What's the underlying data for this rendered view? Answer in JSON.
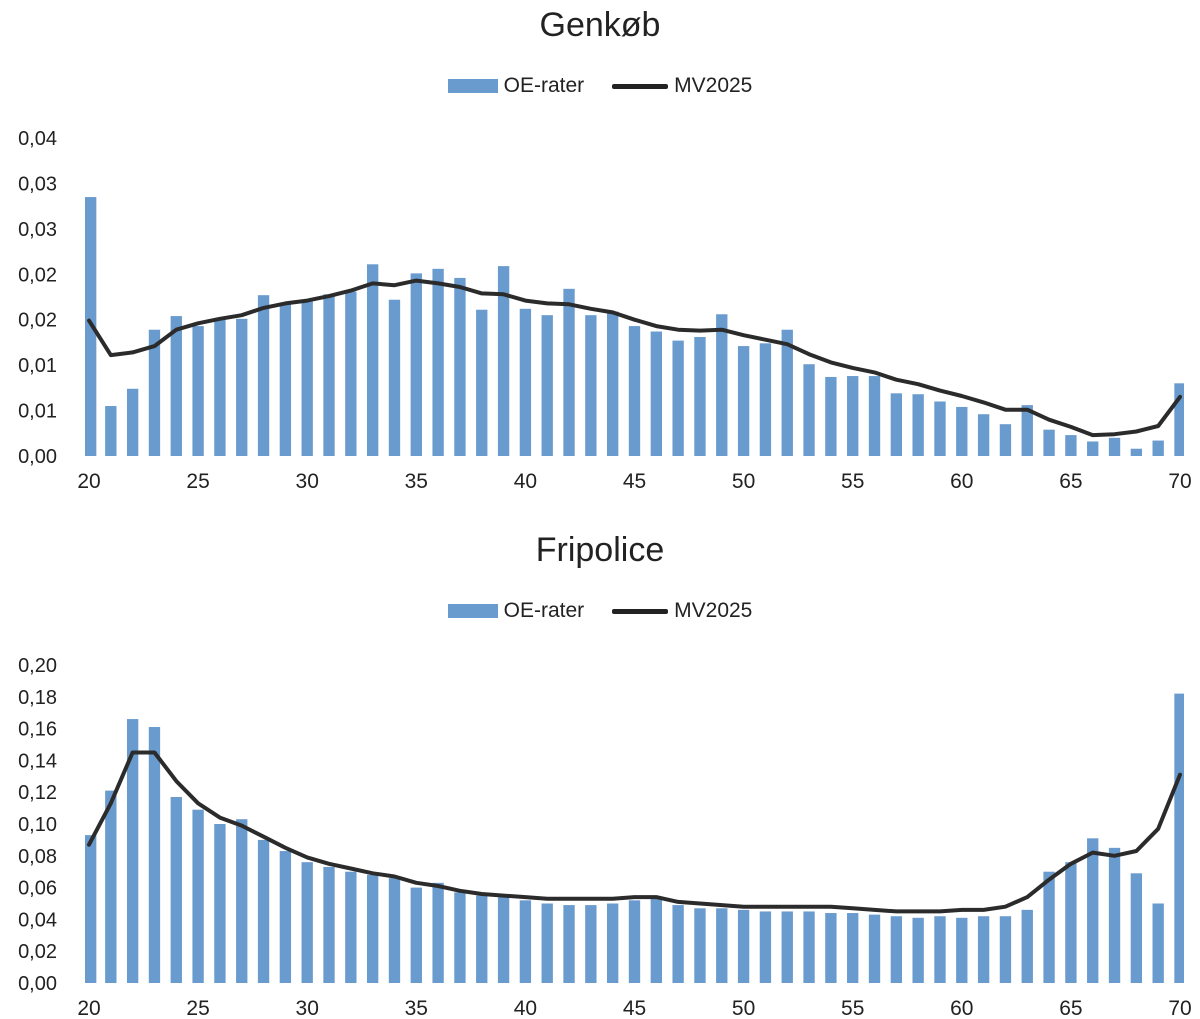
{
  "chart_data": [
    {
      "type": "bar",
      "title": "Genkøb",
      "legend": {
        "bars": "OE-rater",
        "line": "MV2025",
        "placement": "top-center"
      },
      "x": [
        20,
        21,
        22,
        23,
        24,
        25,
        26,
        27,
        28,
        29,
        30,
        31,
        32,
        33,
        34,
        35,
        36,
        37,
        38,
        39,
        40,
        41,
        42,
        43,
        44,
        45,
        46,
        47,
        48,
        49,
        50,
        51,
        52,
        53,
        54,
        55,
        56,
        57,
        58,
        59,
        60,
        61,
        62,
        63,
        64,
        65,
        66,
        67,
        68,
        69,
        70
      ],
      "series": [
        {
          "name": "OE-rater",
          "kind": "bar",
          "values": [
            0.0285,
            0.0055,
            0.0074,
            0.0139,
            0.0154,
            0.0143,
            0.0151,
            0.0151,
            0.0177,
            0.0168,
            0.017,
            0.0178,
            0.0181,
            0.0211,
            0.0172,
            0.0201,
            0.0206,
            0.0196,
            0.0161,
            0.0209,
            0.0162,
            0.0155,
            0.0184,
            0.0155,
            0.0159,
            0.0143,
            0.0137,
            0.0127,
            0.0131,
            0.0156,
            0.0121,
            0.0124,
            0.0139,
            0.0101,
            0.0087,
            0.0088,
            0.0088,
            0.0069,
            0.0068,
            0.006,
            0.0054,
            0.0046,
            0.0035,
            0.0056,
            0.0029,
            0.0023,
            0.0016,
            0.002,
            0.0008,
            0.0017,
            0.008
          ]
        },
        {
          "name": "MV2025",
          "kind": "line",
          "values": [
            0.0149,
            0.0111,
            0.0114,
            0.0121,
            0.0139,
            0.0146,
            0.0151,
            0.0155,
            0.0163,
            0.0168,
            0.0171,
            0.0176,
            0.0182,
            0.019,
            0.0188,
            0.0193,
            0.019,
            0.0186,
            0.0179,
            0.0178,
            0.0171,
            0.0168,
            0.0167,
            0.0162,
            0.0158,
            0.015,
            0.0143,
            0.0139,
            0.0138,
            0.0139,
            0.0133,
            0.0128,
            0.0123,
            0.0112,
            0.0103,
            0.0097,
            0.0092,
            0.0084,
            0.0079,
            0.0072,
            0.0066,
            0.0059,
            0.0051,
            0.0051,
            0.004,
            0.0032,
            0.0023,
            0.0024,
            0.0027,
            0.0033,
            0.0065
          ]
        }
      ],
      "ytick_labels": [
        "0,00",
        "0,01",
        "0,01",
        "0,02",
        "0,02",
        "0,03",
        "0,03",
        "0,04"
      ],
      "yticks": [
        0,
        0.005,
        0.01,
        0.015,
        0.02,
        0.025,
        0.03,
        0.035
      ],
      "ylim": [
        0,
        0.035
      ],
      "xtick_labels": [
        "20",
        "25",
        "30",
        "35",
        "40",
        "45",
        "50",
        "55",
        "60",
        "65",
        "70"
      ],
      "grid": false,
      "colors": {
        "bar": "#6a9bcf",
        "line": "#2b2b2b"
      }
    },
    {
      "type": "bar",
      "title": "Fripolice",
      "legend": {
        "bars": "OE-rater",
        "line": "MV2025",
        "placement": "top-center"
      },
      "x": [
        20,
        21,
        22,
        23,
        24,
        25,
        26,
        27,
        28,
        29,
        30,
        31,
        32,
        33,
        34,
        35,
        36,
        37,
        38,
        39,
        40,
        41,
        42,
        43,
        44,
        45,
        46,
        47,
        48,
        49,
        50,
        51,
        52,
        53,
        54,
        55,
        56,
        57,
        58,
        59,
        60,
        61,
        62,
        63,
        64,
        65,
        66,
        67,
        68,
        69,
        70
      ],
      "series": [
        {
          "name": "OE-rater",
          "kind": "bar",
          "values": [
            0.093,
            0.121,
            0.166,
            0.161,
            0.117,
            0.109,
            0.1,
            0.103,
            0.09,
            0.083,
            0.076,
            0.073,
            0.07,
            0.068,
            0.066,
            0.06,
            0.063,
            0.057,
            0.055,
            0.054,
            0.052,
            0.05,
            0.049,
            0.049,
            0.05,
            0.052,
            0.054,
            0.049,
            0.047,
            0.047,
            0.046,
            0.045,
            0.045,
            0.045,
            0.044,
            0.044,
            0.043,
            0.042,
            0.041,
            0.042,
            0.041,
            0.042,
            0.042,
            0.046,
            0.07,
            0.076,
            0.091,
            0.085,
            0.069,
            0.05,
            0.182
          ]
        },
        {
          "name": "MV2025",
          "kind": "line",
          "values": [
            0.087,
            0.113,
            0.145,
            0.145,
            0.127,
            0.113,
            0.104,
            0.099,
            0.092,
            0.085,
            0.079,
            0.075,
            0.072,
            0.069,
            0.067,
            0.063,
            0.061,
            0.058,
            0.056,
            0.055,
            0.054,
            0.053,
            0.053,
            0.053,
            0.053,
            0.054,
            0.054,
            0.051,
            0.05,
            0.049,
            0.048,
            0.048,
            0.048,
            0.048,
            0.048,
            0.047,
            0.046,
            0.045,
            0.045,
            0.045,
            0.046,
            0.046,
            0.048,
            0.054,
            0.065,
            0.075,
            0.082,
            0.08,
            0.083,
            0.097,
            0.131
          ]
        }
      ],
      "ytick_labels": [
        "0,00",
        "0,02",
        "0,04",
        "0,06",
        "0,08",
        "0,10",
        "0,12",
        "0,14",
        "0,16",
        "0,18",
        "0,20"
      ],
      "yticks": [
        0,
        0.02,
        0.04,
        0.06,
        0.08,
        0.1,
        0.12,
        0.14,
        0.16,
        0.18,
        0.2
      ],
      "ylim": [
        0,
        0.2
      ],
      "xtick_labels": [
        "20",
        "25",
        "30",
        "35",
        "40",
        "45",
        "50",
        "55",
        "60",
        "65",
        "70"
      ],
      "grid": false,
      "colors": {
        "bar": "#6a9bcf",
        "line": "#2b2b2b"
      }
    }
  ]
}
